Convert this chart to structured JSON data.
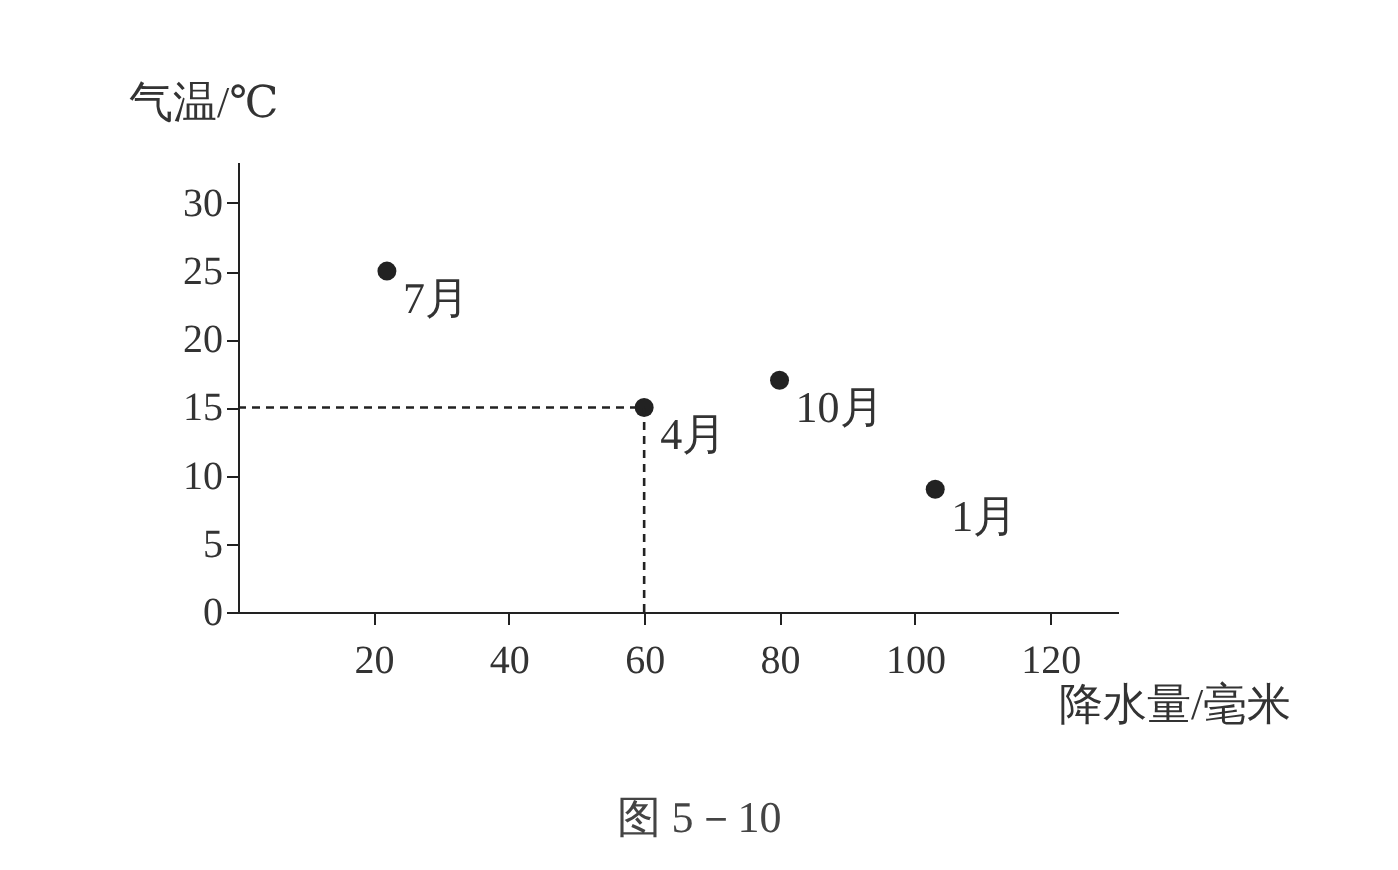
{
  "chart_data": {
    "type": "scatter",
    "xlabel": "降水量/毫米",
    "ylabel": "气温/℃",
    "x": [
      22,
      60,
      80,
      103
    ],
    "series": [
      {
        "color": "#222222",
        "values": [
          25,
          15,
          17,
          9
        ]
      }
    ],
    "xlim": [
      0,
      130
    ],
    "xticks": [
      20,
      40,
      60,
      80,
      100,
      120
    ],
    "ylim": [
      0,
      33
    ],
    "yticks": [
      0,
      5,
      10,
      15,
      20,
      25,
      30
    ],
    "grid": false,
    "marker": "circle",
    "ref_lines": [
      {
        "axis": "x",
        "value": 60,
        "line_style": "dashed",
        "color": "#222222"
      },
      {
        "axis": "y",
        "value": 15,
        "line_style": "dashed",
        "color": "#222222"
      }
    ],
    "annotations": [
      {
        "text": "7月",
        "x": 22,
        "y": 25
      },
      {
        "text": "4月",
        "x": 60,
        "y": 15
      },
      {
        "text": "10月",
        "x": 80,
        "y": 17
      },
      {
        "text": "1月",
        "x": 103,
        "y": 9
      },
      "图 5－10"
    ]
  }
}
